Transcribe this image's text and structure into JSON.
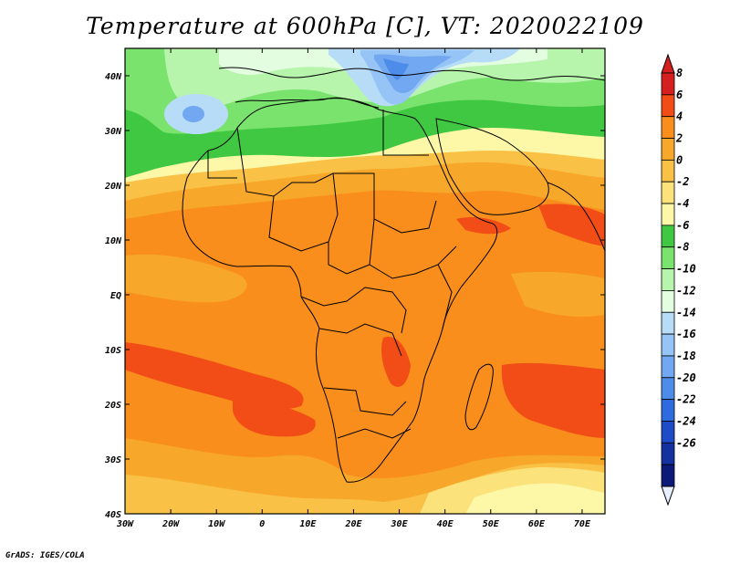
{
  "title": "Temperature at 600hPa [C], VT: 2020022109",
  "credit": "GrADS: IGES/COLA",
  "axes": {
    "lon_labels": [
      "30W",
      "20W",
      "10W",
      "0",
      "10E",
      "20E",
      "30E",
      "40E",
      "50E",
      "60E",
      "70E"
    ],
    "lat_labels": [
      "40N",
      "30N",
      "20N",
      "10N",
      "EQ",
      "10S",
      "20S",
      "30S",
      "40S"
    ]
  },
  "colorbar": {
    "levels": [
      "8",
      "6",
      "4",
      "2",
      "0",
      "-2",
      "-4",
      "-6",
      "-8",
      "-10",
      "-12",
      "-14",
      "-16",
      "-18",
      "-20",
      "-22",
      "-24",
      "-26"
    ],
    "colors": [
      "#d62020",
      "#f24d16",
      "#f98e1c",
      "#f7a72a",
      "#f9c247",
      "#fbe27a",
      "#fdf8a8",
      "#41c842",
      "#7ae36e",
      "#b7f4ac",
      "#e2fde0",
      "#b7dcf8",
      "#96c4f6",
      "#72a8f1",
      "#4e8ce9",
      "#2e6be0",
      "#1e4bc8",
      "#13329f",
      "#0b1a78"
    ],
    "under_color": "#e8f0ff",
    "over_color": "#d62020"
  },
  "field": {
    "lon_range": [
      -30,
      75
    ],
    "lat_range": [
      -40,
      45
    ],
    "colors": {
      "warm_core": "#f24d16",
      "band_4_6": "#f98e1c",
      "band_2_4": "#f7a72a",
      "band_0_2": "#f9c247",
      "band_m2_0": "#fbe27a",
      "band_m4_m2": "#fdf8a8",
      "band_m6_m4": "#41c842",
      "band_m8_m6": "#7ae36e",
      "band_m10_m8": "#b7f4ac",
      "band_m12_m10": "#e2fde0",
      "cold_1": "#b7dcf8",
      "cold_2": "#96c4f6",
      "cold_3": "#72a8f1",
      "cold_4": "#4e8ce9"
    }
  }
}
